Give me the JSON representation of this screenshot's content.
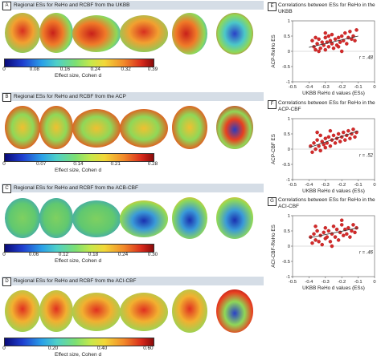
{
  "panels": [
    {
      "letter": "A",
      "title": "Regional ESs for ReHo and RCBF from the UKBB",
      "ticks": [
        "0",
        "0.08",
        "0.16",
        "0.24",
        "0.32",
        "0.39"
      ],
      "cb_label": "Effect size, Cohen d"
    },
    {
      "letter": "B",
      "title": "Regional ESs for ReHo and RCBF from the ACP",
      "ticks": [
        "0",
        "0.07",
        "0.14",
        "0.21",
        "0.28"
      ],
      "cb_label": "Effect size, Cohen d"
    },
    {
      "letter": "C",
      "title": "Regional ESs for ReHo and RCBF from the ACB-CBF",
      "ticks": [
        "0",
        "0.06",
        "0.12",
        "0.18",
        "0.24",
        "0.30"
      ],
      "cb_label": "Effect size, Cohen d"
    },
    {
      "letter": "D",
      "title": "Regional ESs for ReHo and RCBF from the ACI-CBF",
      "ticks": [
        "0",
        "0.20",
        "0.40",
        "0.60"
      ],
      "cb_label": "Effect size, Cohen d"
    }
  ],
  "scatter_panels": [
    {
      "letter": "E",
      "title": "Correlations between ESs for ReHo in the UKBB",
      "ylabel": "ACP-ReHo ES",
      "xlabel": "UKBB ReHo d values (ESs)",
      "r": "r = .48"
    },
    {
      "letter": "F",
      "title": "Correlations between ESs for ReHo in the ACP-CBF",
      "ylabel": "ACP-CBF ES",
      "xlabel": "UKBB ReHo d values (ESs)",
      "r": "r = .52"
    },
    {
      "letter": "G",
      "title": "Correlations between ESs for ReHo in the ACI-CBF",
      "ylabel": "ACI-CBF-ReHo ES",
      "xlabel": "UKBB ReHo d values (ESs)",
      "r": "r = .46"
    }
  ],
  "chart_data": [
    {
      "type": "scatter",
      "panel": "E",
      "xlabel": "UKBB ReHo d values (ESs)",
      "ylabel": "ACP-ReHo ES",
      "xlim": [
        -0.5,
        0
      ],
      "ylim": [
        -1,
        1
      ],
      "xticks": [
        "-0.5",
        "-0.4",
        "-0.3",
        "-0.2",
        "-0.1",
        "0"
      ],
      "yticks": [
        "-1",
        "-0.5",
        "0",
        "0.5",
        "1"
      ],
      "points": [
        [
          -0.38,
          0.35
        ],
        [
          -0.37,
          0.15
        ],
        [
          -0.36,
          0.05
        ],
        [
          -0.35,
          0.25
        ],
        [
          -0.34,
          0.4
        ],
        [
          -0.33,
          0.1
        ],
        [
          -0.32,
          0.3
        ],
        [
          -0.31,
          0.2
        ],
        [
          -0.3,
          0.45
        ],
        [
          -0.3,
          0.05
        ],
        [
          -0.29,
          0.3
        ],
        [
          -0.28,
          0.15
        ],
        [
          -0.27,
          0.35
        ],
        [
          -0.26,
          0.25
        ],
        [
          -0.26,
          0.55
        ],
        [
          -0.25,
          0.1
        ],
        [
          -0.24,
          0.4
        ],
        [
          -0.23,
          0.2
        ],
        [
          -0.22,
          0.45
        ],
        [
          -0.21,
          0.3
        ],
        [
          -0.2,
          0.5
        ],
        [
          -0.19,
          0.35
        ],
        [
          -0.18,
          0.6
        ],
        [
          -0.17,
          0.25
        ],
        [
          -0.16,
          0.45
        ],
        [
          -0.15,
          0.65
        ],
        [
          -0.14,
          0.4
        ],
        [
          -0.13,
          0.5
        ],
        [
          -0.12,
          0.35
        ],
        [
          -0.11,
          0.7
        ],
        [
          -0.34,
          0.0
        ],
        [
          -0.28,
          0.5
        ],
        [
          -0.22,
          0.15
        ],
        [
          -0.36,
          0.45
        ],
        [
          -0.2,
          0.0
        ],
        [
          -0.3,
          0.6
        ]
      ],
      "fit": [
        [
          -0.4,
          0.13
        ],
        [
          -0.1,
          0.5
        ]
      ],
      "annotation": "r = .48"
    },
    {
      "type": "scatter",
      "panel": "F",
      "xlabel": "UKBB ReHo d values (ESs)",
      "ylabel": "ACP-CBF ES",
      "xlim": [
        -0.5,
        0
      ],
      "ylim": [
        -1,
        1
      ],
      "xticks": [
        "-0.5",
        "-0.4",
        "-0.3",
        "-0.2",
        "-0.1",
        "0"
      ],
      "yticks": [
        "-1",
        "-0.5",
        "0",
        "0.5",
        "1"
      ],
      "points": [
        [
          -0.39,
          0.1
        ],
        [
          -0.38,
          -0.1
        ],
        [
          -0.37,
          0.2
        ],
        [
          -0.36,
          0.0
        ],
        [
          -0.35,
          0.3
        ],
        [
          -0.34,
          0.1
        ],
        [
          -0.33,
          -0.05
        ],
        [
          -0.32,
          0.25
        ],
        [
          -0.31,
          0.15
        ],
        [
          -0.3,
          0.35
        ],
        [
          -0.3,
          0.05
        ],
        [
          -0.29,
          0.2
        ],
        [
          -0.28,
          0.4
        ],
        [
          -0.27,
          0.1
        ],
        [
          -0.26,
          0.3
        ],
        [
          -0.25,
          0.45
        ],
        [
          -0.24,
          0.2
        ],
        [
          -0.23,
          0.35
        ],
        [
          -0.22,
          0.5
        ],
        [
          -0.21,
          0.25
        ],
        [
          -0.2,
          0.4
        ],
        [
          -0.19,
          0.55
        ],
        [
          -0.18,
          0.3
        ],
        [
          -0.17,
          0.45
        ],
        [
          -0.16,
          0.6
        ],
        [
          -0.15,
          0.35
        ],
        [
          -0.14,
          0.5
        ],
        [
          -0.13,
          0.65
        ],
        [
          -0.12,
          0.4
        ],
        [
          -0.11,
          0.55
        ],
        [
          -0.35,
          0.55
        ],
        [
          -0.27,
          0.6
        ],
        [
          -0.33,
          0.45
        ]
      ],
      "fit": [
        [
          -0.4,
          0.05
        ],
        [
          -0.1,
          0.6
        ]
      ],
      "annotation": "r = .52"
    },
    {
      "type": "scatter",
      "panel": "G",
      "xlabel": "UKBB ReHo d values (ESs)",
      "ylabel": "ACI-CBF-ReHo ES",
      "xlim": [
        -0.5,
        0
      ],
      "ylim": [
        -1,
        1
      ],
      "xticks": [
        "-0.5",
        "-0.4",
        "-0.3",
        "-0.2",
        "-0.1",
        "0"
      ],
      "yticks": [
        "-1",
        "-0.5",
        "0",
        "0.5",
        "1"
      ],
      "points": [
        [
          -0.39,
          0.3
        ],
        [
          -0.38,
          0.1
        ],
        [
          -0.37,
          0.4
        ],
        [
          -0.36,
          0.2
        ],
        [
          -0.35,
          0.5
        ],
        [
          -0.34,
          0.15
        ],
        [
          -0.33,
          0.35
        ],
        [
          -0.32,
          0.05
        ],
        [
          -0.31,
          0.45
        ],
        [
          -0.3,
          0.25
        ],
        [
          -0.3,
          0.6
        ],
        [
          -0.29,
          0.3
        ],
        [
          -0.28,
          0.5
        ],
        [
          -0.27,
          0.15
        ],
        [
          -0.26,
          0.4
        ],
        [
          -0.25,
          0.65
        ],
        [
          -0.24,
          0.3
        ],
        [
          -0.23,
          0.55
        ],
        [
          -0.22,
          0.2
        ],
        [
          -0.21,
          0.45
        ],
        [
          -0.2,
          0.7
        ],
        [
          -0.19,
          0.35
        ],
        [
          -0.18,
          0.55
        ],
        [
          -0.17,
          0.4
        ],
        [
          -0.16,
          0.6
        ],
        [
          -0.15,
          0.3
        ],
        [
          -0.14,
          0.5
        ],
        [
          -0.13,
          0.7
        ],
        [
          -0.12,
          0.45
        ],
        [
          -0.11,
          0.6
        ],
        [
          -0.36,
          0.65
        ],
        [
          -0.26,
          0.0
        ],
        [
          -0.2,
          0.85
        ]
      ],
      "fit": [
        [
          -0.4,
          0.27
        ],
        [
          -0.1,
          0.6
        ]
      ],
      "annotation": "r = .46"
    }
  ]
}
